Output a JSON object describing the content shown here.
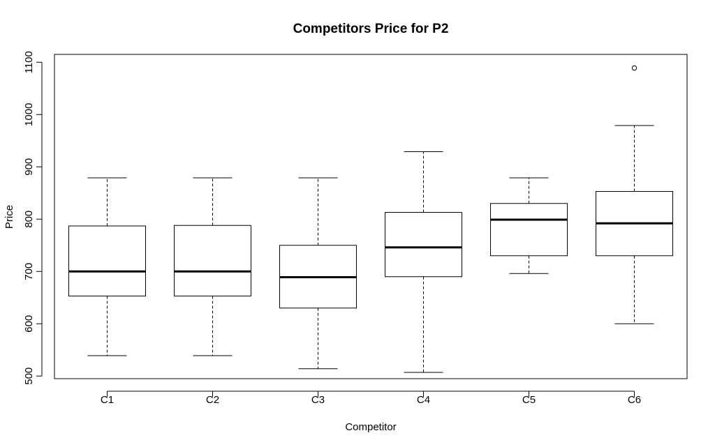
{
  "chart_data": {
    "type": "boxplot",
    "title": "Competitors Price for P2",
    "xlabel": "Competitor",
    "ylabel": "Price",
    "ylim": [
      495,
      1115
    ],
    "yticks": [
      500,
      600,
      700,
      800,
      900,
      1000,
      1100
    ],
    "categories": [
      "C1",
      "C2",
      "C3",
      "C4",
      "C5",
      "C6"
    ],
    "boxes": [
      {
        "name": "C1",
        "whisker_low": 539,
        "q1": 653,
        "median": 700,
        "q3": 787,
        "whisker_high": 879,
        "outliers": []
      },
      {
        "name": "C2",
        "whisker_low": 539,
        "q1": 653,
        "median": 700,
        "q3": 788,
        "whisker_high": 879,
        "outliers": []
      },
      {
        "name": "C3",
        "whisker_low": 514,
        "q1": 630,
        "median": 689,
        "q3": 750,
        "whisker_high": 879,
        "outliers": []
      },
      {
        "name": "C4",
        "whisker_low": 507,
        "q1": 690,
        "median": 746,
        "q3": 813,
        "whisker_high": 929,
        "outliers": []
      },
      {
        "name": "C5",
        "whisker_low": 696,
        "q1": 730,
        "median": 799,
        "q3": 830,
        "whisker_high": 879,
        "outliers": []
      },
      {
        "name": "C6",
        "whisker_low": 600,
        "q1": 730,
        "median": 792,
        "q3": 853,
        "whisker_high": 979,
        "outliers": [
          1089
        ]
      }
    ]
  }
}
